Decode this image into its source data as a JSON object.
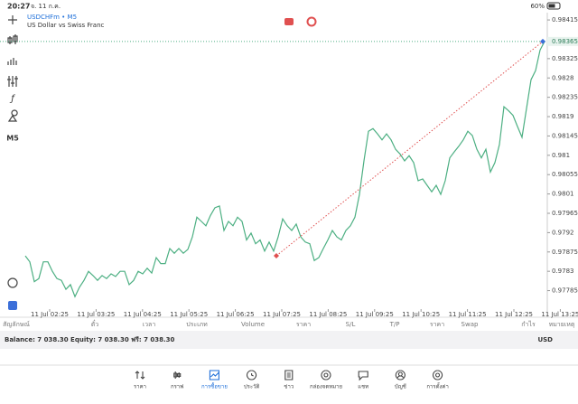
{
  "status_bar": {
    "time": "20:27",
    "date": "จ. 11 ก.ค.",
    "battery": "60%"
  },
  "chart": {
    "symbol": "USDCHFm • M5",
    "description": "US Dollar vs Swiss Franc",
    "timeframe": "M5",
    "prices": [
      0.97866,
      0.97852,
      0.97806,
      0.97813,
      0.97852,
      0.97852,
      0.9783,
      0.97813,
      0.97809,
      0.97788,
      0.97799,
      0.97771,
      0.97793,
      0.97809,
      0.9783,
      0.9782,
      0.97809,
      0.9782,
      0.97813,
      0.97824,
      0.97818,
      0.9783,
      0.9783,
      0.97799,
      0.97809,
      0.9783,
      0.97824,
      0.97837,
      0.97826,
      0.97862,
      0.97848,
      0.97848,
      0.97883,
      0.97872,
      0.97883,
      0.97872,
      0.97881,
      0.9791,
      0.97956,
      0.97946,
      0.97936,
      0.9796,
      0.97978,
      0.97982,
      0.97925,
      0.97946,
      0.97936,
      0.97956,
      0.97946,
      0.97903,
      0.97919,
      0.97894,
      0.97903,
      0.97877,
      0.97898,
      0.97877,
      0.9791,
      0.97952,
      0.97936,
      0.97925,
      0.9794,
      0.9791,
      0.97898,
      0.97894,
      0.97855,
      0.97862,
      0.97883,
      0.97903,
      0.97925,
      0.9791,
      0.97903,
      0.97925,
      0.97936,
      0.97956,
      0.98009,
      0.98087,
      0.98156,
      0.98162,
      0.9815,
      0.98136,
      0.9815,
      0.98136,
      0.98114,
      0.98103,
      0.98087,
      0.98099,
      0.98083,
      0.98041,
      0.98045,
      0.9803,
      0.98015,
      0.9803,
      0.98009,
      0.98041,
      0.98094,
      0.98108,
      0.98121,
      0.98136,
      0.98156,
      0.98146,
      0.98114,
      0.98094,
      0.98114,
      0.98061,
      0.98083,
      0.98125,
      0.98213,
      0.98204,
      0.98193,
      0.98167,
      0.98142,
      0.98209,
      0.98276,
      0.98297,
      0.98345,
      0.98365
    ],
    "ylim": [
      0.97742,
      0.98432
    ],
    "yticks": [
      0.98415,
      0.98325,
      0.9828,
      0.98235,
      0.9819,
      0.98145,
      0.981,
      0.98055,
      0.9801,
      0.97965,
      0.9792,
      0.97875,
      0.9783,
      0.97785
    ],
    "current_price": 0.98365,
    "trade_open_price": 0.97866,
    "x_labels": [
      "11 Jul 02:25",
      "11 Jul 03:25",
      "11 Jul 04:25",
      "11 Jul 05:25",
      "11 Jul 06:25",
      "11 Jul 07:25",
      "11 Jul 08:25",
      "11 Jul 09:25",
      "11 Jul 10:25",
      "11 Jul 11:25",
      "11 Jul 12:25",
      "11 Jul 13:25"
    ]
  },
  "table": {
    "headers": [
      "สัญลักษณ์",
      "ตั๋ว",
      "เวลา",
      "ประเภท",
      "Volume",
      "ราคา",
      "S/L",
      "T/P",
      "ราคา",
      "Swap",
      "กำไร",
      "หมายเหตุ"
    ],
    "balance": "Balance: 7 038.30 Equity: 7 038.30 ฟรี: 7 038.30",
    "currency": "USD"
  },
  "tabs": [
    "ราคา",
    "กราฟ",
    "การซื้อขาย",
    "ประวัติ",
    "ข่าว",
    "กล่องจดหมาย",
    "แชท",
    "บัญชี",
    "การตั้งค่า"
  ]
}
